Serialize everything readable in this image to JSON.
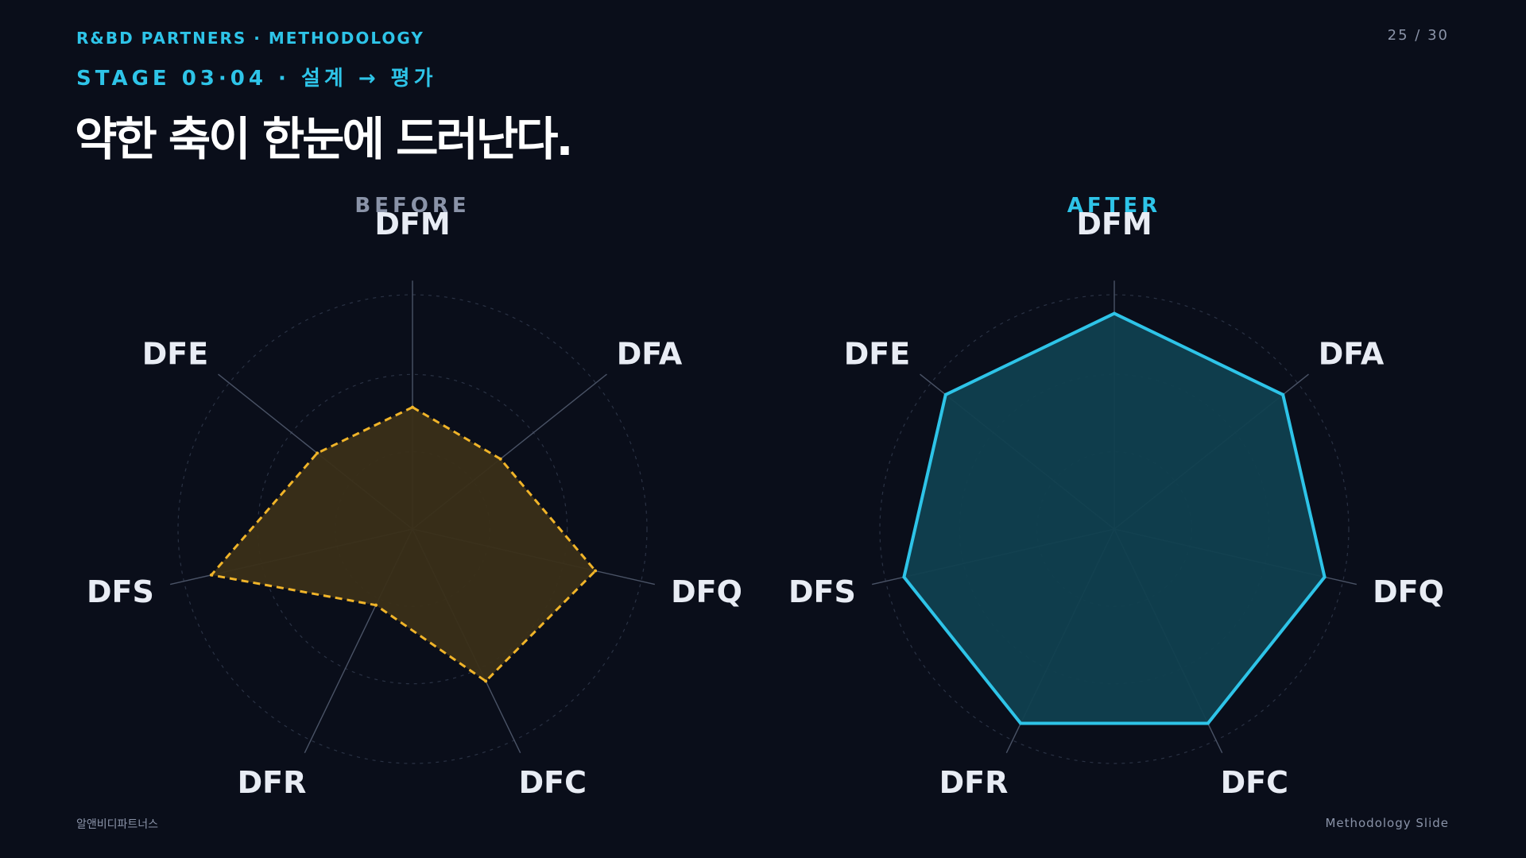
{
  "header": {
    "brand": "R&BD PARTNERS · METHODOLOGY",
    "page": "25 / 30",
    "stage": "STAGE 03·04 · 설계 → 평가",
    "title": "약한 축이 한눈에 드러난다."
  },
  "footer": {
    "left": "알앤비디파트너스",
    "right": "Methodology Slide"
  },
  "colors": {
    "background": "#0a0e1a",
    "accent": "#2ec4e8",
    "before_stroke": "#f0b429",
    "before_fill": "#3a2f18",
    "after_stroke": "#2ec4e8",
    "after_fill": "#10404f",
    "muted": "#8a93a8"
  },
  "chart_data": [
    {
      "type": "radar",
      "title": "BEFORE",
      "axes": [
        "DFM",
        "DFA",
        "DFQ",
        "DFC",
        "DFR",
        "DFS",
        "DFE"
      ],
      "range": [
        0,
        5
      ],
      "series": [
        {
          "values": [
            2.6,
            2.4,
            4.0,
            3.6,
            1.8,
            4.4,
            2.6
          ]
        }
      ],
      "line_style": "dashed"
    },
    {
      "type": "radar",
      "title": "AFTER",
      "axes": [
        "DFM",
        "DFA",
        "DFQ",
        "DFC",
        "DFR",
        "DFS",
        "DFE"
      ],
      "range": [
        0,
        5
      ],
      "series": [
        {
          "values": [
            4.6,
            4.6,
            4.6,
            4.6,
            4.6,
            4.6,
            4.6
          ]
        }
      ],
      "line_style": "solid"
    }
  ]
}
